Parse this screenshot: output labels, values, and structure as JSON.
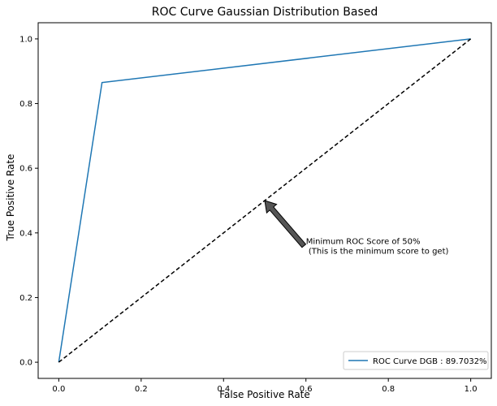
{
  "chart_data": {
    "type": "line",
    "title": "ROC Curve Gaussian Distribution Based",
    "xlabel": "False Positive Rate",
    "ylabel": "True Positive Rate",
    "xlim": [
      -0.05,
      1.05
    ],
    "ylim": [
      -0.05,
      1.05
    ],
    "xticks": [
      "0.0",
      "0.2",
      "0.4",
      "0.6",
      "0.8",
      "1.0"
    ],
    "yticks": [
      "0.0",
      "0.2",
      "0.4",
      "0.6",
      "0.8",
      "1.0"
    ],
    "grid": false,
    "legend_position": "lower right",
    "series": [
      {
        "name": "ROC Curve DGB : 89.7032%",
        "color": "#1f77b4",
        "style": "solid",
        "x": [
          0.0,
          0.105,
          1.0
        ],
        "y": [
          0.0,
          0.865,
          1.0
        ]
      },
      {
        "color": "#000000",
        "style": "dashed",
        "x": [
          0.0,
          1.0
        ],
        "y": [
          0.0,
          1.0
        ]
      }
    ],
    "annotations": [
      {
        "text_lines": [
          "Minimum ROC Score of 50%",
          " (This is the minimum score to get)"
        ],
        "text_x": 0.6,
        "text_y": 0.35,
        "arrow_from_x": 0.595,
        "arrow_from_y": 0.36,
        "arrow_to_x": 0.5,
        "arrow_to_y": 0.5,
        "arrow_color": "#555555"
      }
    ]
  }
}
